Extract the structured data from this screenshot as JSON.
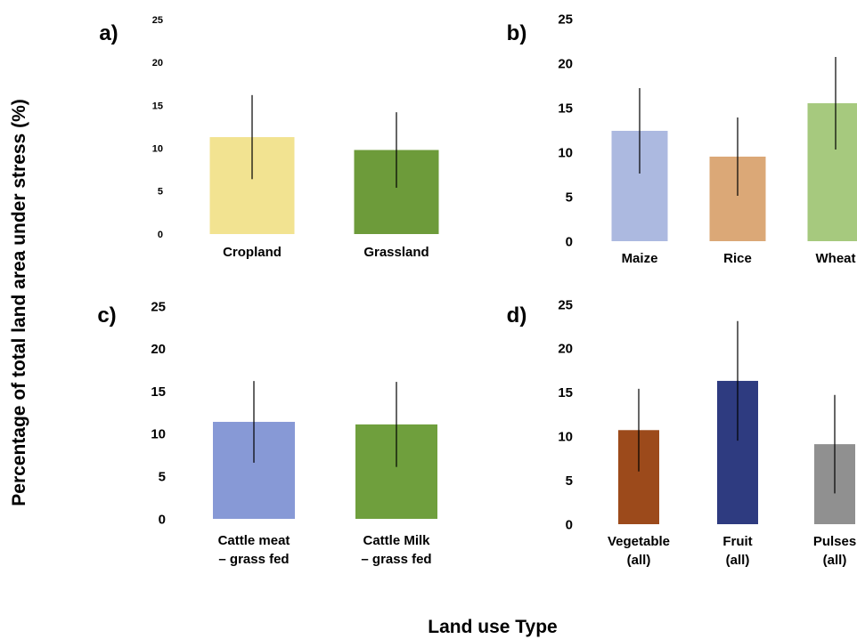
{
  "ylabel": "Percentage of total land area under stress (%)",
  "xlabel": "Land use Type",
  "chart_data": [
    {
      "type": "bar",
      "panel": "a)",
      "categories": [
        "Cropland",
        "Grassland"
      ],
      "values": [
        11.3,
        9.8
      ],
      "errors": [
        4.9,
        4.4
      ],
      "colors": [
        "#f2e391",
        "#6d9b3a"
      ],
      "ylim": [
        0,
        25
      ],
      "yticks": [
        "0",
        "5",
        "10",
        "15",
        "20",
        "25"
      ],
      "ylabel": "Percentage of total land area under stress (%)",
      "xlabel": "Land use Type"
    },
    {
      "type": "bar",
      "panel": "b)",
      "categories": [
        "Maize",
        "Rice",
        "Wheat"
      ],
      "values": [
        12.4,
        9.5,
        15.5
      ],
      "errors": [
        4.8,
        4.4,
        5.2
      ],
      "colors": [
        "#acb9e0",
        "#dba877",
        "#a6c97e"
      ],
      "ylim": [
        0,
        25
      ],
      "yticks": [
        "0",
        "5",
        "10",
        "15",
        "20",
        "25"
      ],
      "ylabel": "Percentage of total land area under stress (%)",
      "xlabel": "Land use Type"
    },
    {
      "type": "bar",
      "panel": "c)",
      "categories": [
        "Cattle meat\n– grass fed",
        "Cattle Milk\n– grass fed"
      ],
      "values": [
        11.4,
        11.1
      ],
      "errors": [
        4.8,
        5.0
      ],
      "colors": [
        "#8799d6",
        "#6f9f3d"
      ],
      "ylim": [
        0,
        25
      ],
      "yticks": [
        "0",
        "5",
        "10",
        "15",
        "20",
        "25"
      ],
      "ylabel": "Percentage of total land area under stress (%)",
      "xlabel": "Land use Type"
    },
    {
      "type": "bar",
      "panel": "d)",
      "categories": [
        "Vegetable\n(all)",
        "Fruit\n(all)",
        "Pulses\n(all)"
      ],
      "values": [
        10.7,
        16.3,
        9.1
      ],
      "errors": [
        4.7,
        6.8,
        5.6
      ],
      "colors": [
        "#9c4a1b",
        "#2e3b80",
        "#909090"
      ],
      "ylim": [
        0,
        25
      ],
      "yticks": [
        "0",
        "5",
        "10",
        "15",
        "20",
        "25"
      ],
      "ylabel": "Percentage of total land area under stress (%)",
      "xlabel": "Land use Type"
    }
  ]
}
